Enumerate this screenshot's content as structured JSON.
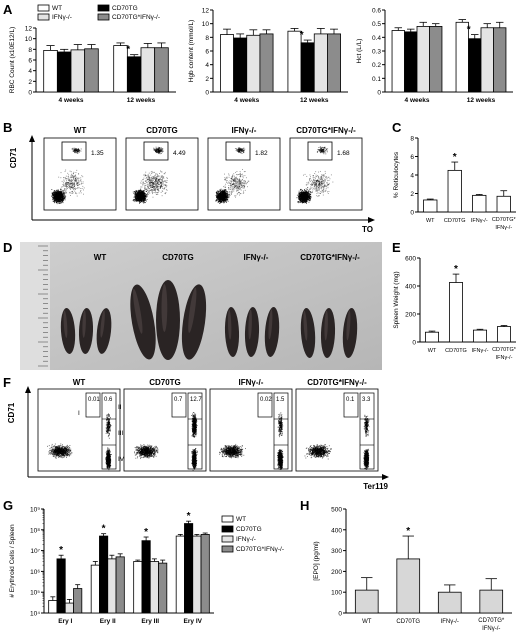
{
  "panels": {
    "A": "A",
    "B": "B",
    "C": "C",
    "D": "D",
    "E": "E",
    "F": "F",
    "G": "G",
    "H": "H"
  },
  "colors": {
    "wt": "#ffffff",
    "cd70tg": "#000000",
    "ifng": "#e4e4e4",
    "double": "#8c8c8c",
    "spleen": "#2a2424",
    "background": "#ffffff"
  },
  "groups": {
    "wt": "WT",
    "cd70tg": "CD70TG",
    "ifng": "IFNγ-/-",
    "double": "CD70TG*IFNγ-/-",
    "double_l1": "CD70TG*",
    "double_l2": "IFNγ-/-"
  },
  "star": "*",
  "chart_data": [
    {
      "id": "A1",
      "type": "bar",
      "ylabel": "RBC Count (x10E12/L)",
      "ylim": [
        0,
        12
      ],
      "yticks": [
        0,
        2,
        4,
        6,
        8,
        10,
        12
      ],
      "categories": [
        "4 weeks",
        "12 weeks"
      ],
      "legend": [
        "WT",
        "CD70TG",
        "IFNγ-/-",
        "CD70TG*IFNγ-/-"
      ],
      "series": [
        {
          "name": "WT",
          "values": [
            7.8,
            8.7
          ],
          "err": [
            0.9,
            0.5
          ]
        },
        {
          "name": "CD70TG",
          "values": [
            7.5,
            6.6
          ],
          "err": [
            0.5,
            0.4
          ]
        },
        {
          "name": "IFNγ-/-",
          "values": [
            7.9,
            8.3
          ],
          "err": [
            1.0,
            0.8
          ]
        },
        {
          "name": "CD70TG*IFNγ-/-",
          "values": [
            8.1,
            8.3
          ],
          "err": [
            0.8,
            0.9
          ]
        }
      ],
      "stars": [
        {
          "category": 1,
          "series": 1
        }
      ]
    },
    {
      "id": "A2",
      "type": "bar",
      "ylabel": "Hgb content (mmol/L)",
      "ylim": [
        0,
        12
      ],
      "yticks": [
        0,
        2,
        4,
        6,
        8,
        10,
        12
      ],
      "categories": [
        "4 weeks",
        "12 weeks"
      ],
      "series": [
        {
          "name": "WT",
          "values": [
            8.4,
            8.9
          ],
          "err": [
            0.8,
            0.4
          ]
        },
        {
          "name": "CD70TG",
          "values": [
            7.9,
            7.2
          ],
          "err": [
            0.6,
            0.4
          ]
        },
        {
          "name": "IFNγ-/-",
          "values": [
            8.3,
            8.5
          ],
          "err": [
            0.8,
            0.8
          ]
        },
        {
          "name": "CD70TG*IFNγ-/-",
          "values": [
            8.5,
            8.5
          ],
          "err": [
            0.6,
            0.7
          ]
        }
      ],
      "stars": [
        {
          "category": 1,
          "series": 1
        }
      ]
    },
    {
      "id": "A3",
      "type": "bar",
      "ylabel": "Hct (L/L)",
      "ylim": [
        0,
        0.6
      ],
      "yticks": [
        0,
        0.1,
        0.2,
        0.3,
        0.4,
        0.5,
        0.6
      ],
      "categories": [
        "4 weeks",
        "12 weeks"
      ],
      "series": [
        {
          "name": "WT",
          "values": [
            0.45,
            0.51
          ],
          "err": [
            0.02,
            0.02
          ]
        },
        {
          "name": "CD70TG",
          "values": [
            0.44,
            0.39
          ],
          "err": [
            0.02,
            0.03
          ]
        },
        {
          "name": "IFNγ-/-",
          "values": [
            0.48,
            0.47
          ],
          "err": [
            0.03,
            0.03
          ]
        },
        {
          "name": "CD70TG*IFNγ-/-",
          "values": [
            0.48,
            0.47
          ],
          "err": [
            0.02,
            0.04
          ]
        }
      ],
      "stars": [
        {
          "category": 1,
          "series": 1
        }
      ]
    },
    {
      "id": "C",
      "type": "bar",
      "ylabel": "% Reticulocytes",
      "ylim": [
        0,
        8
      ],
      "yticks": [
        0,
        2,
        4,
        6,
        8
      ],
      "categories": [
        "WT",
        "CD70TG",
        "IFNγ-/-",
        "CD70TG*IFNγ-/-"
      ],
      "values": [
        1.3,
        4.5,
        1.8,
        1.7
      ],
      "err": [
        0.1,
        0.9,
        0.1,
        0.6
      ],
      "fill": "#ffffff",
      "stars": [
        1
      ]
    },
    {
      "id": "E",
      "type": "bar",
      "ylabel": "Spleen Weight (mg)",
      "ylim": [
        0,
        600
      ],
      "yticks": [
        0,
        200,
        400,
        600
      ],
      "categories": [
        "WT",
        "CD70TG",
        "IFNγ-/-",
        "CD70TG*IFNγ-/-"
      ],
      "values": [
        70,
        425,
        85,
        110
      ],
      "err": [
        8,
        60,
        6,
        8
      ],
      "fill": "#ffffff",
      "stars": [
        1
      ]
    },
    {
      "id": "G",
      "type": "bar",
      "log": true,
      "ylabel": "# Erythroid Cells / Spleen",
      "ylim": [
        10000,
        1000000000
      ],
      "yticks": [
        10000,
        100000,
        1000000,
        10000000,
        100000000,
        1000000000
      ],
      "ytick_labels": [
        "10⁴",
        "10⁵",
        "10⁶",
        "10⁷",
        "10⁸",
        "10⁹"
      ],
      "categories": [
        "Ery I",
        "Ery II",
        "Ery III",
        "Ery IV"
      ],
      "legend": [
        "WT",
        "CD70TG",
        "IFNγ-/-",
        "CD70TG*IFNγ-/-"
      ],
      "series": [
        {
          "name": "WT",
          "values": [
            40000,
            2000000,
            3000000,
            50000000
          ],
          "err": [
            20000,
            1000000,
            500000,
            10000000
          ]
        },
        {
          "name": "CD70TG",
          "values": [
            4000000,
            50000000,
            30000000,
            200000000
          ],
          "err": [
            2000000,
            15000000,
            15000000,
            60000000
          ]
        },
        {
          "name": "IFNγ-/-",
          "values": [
            30000,
            4000000,
            3000000,
            50000000
          ],
          "err": [
            15000,
            2000000,
            1000000,
            10000000
          ]
        },
        {
          "name": "CD70TG*IFNγ-/-",
          "values": [
            150000,
            5000000,
            2500000,
            60000000
          ],
          "err": [
            80000,
            2000000,
            1000000,
            10000000
          ]
        }
      ],
      "stars": [
        {
          "category": 0,
          "series": 1
        },
        {
          "category": 1,
          "series": 1
        },
        {
          "category": 2,
          "series": 1
        },
        {
          "category": 3,
          "series": 1
        }
      ]
    },
    {
      "id": "H",
      "type": "bar",
      "ylabel": "[EPO] (pg/ml)",
      "ylim": [
        0,
        500
      ],
      "yticks": [
        0,
        100,
        200,
        300,
        400,
        500
      ],
      "categories": [
        "WT",
        "CD70TG",
        "IFNγ-/-",
        "CD70TG*IFNγ-/-"
      ],
      "values": [
        110,
        260,
        100,
        110
      ],
      "err": [
        60,
        110,
        35,
        55
      ],
      "fill": "#d7d7d7",
      "stars": [
        1
      ]
    }
  ],
  "flow_B": {
    "ylabel": "CD71",
    "xlabel": "TO",
    "plots": [
      {
        "title": "WT",
        "gate": "1.35"
      },
      {
        "title": "CD70TG",
        "gate": "4.49"
      },
      {
        "title": "IFNγ-/-",
        "gate": "1.82"
      },
      {
        "title": "CD70TG*IFNγ-/-",
        "gate": "1.68"
      }
    ]
  },
  "flow_F": {
    "ylabel": "CD71",
    "xlabel": "Ter119",
    "gate_labels": [
      "I",
      "II",
      "III",
      "IV"
    ],
    "plots": [
      {
        "title": "WT",
        "g1": "0.01",
        "g2": "0.6"
      },
      {
        "title": "CD70TG",
        "g1": "0.7",
        "g2": "12.7"
      },
      {
        "title": "IFNγ-/-",
        "g1": "0.02",
        "g2": "1.5"
      },
      {
        "title": "CD70TG*IFNγ-/-",
        "g1": "0.1",
        "g2": "3.3"
      }
    ]
  },
  "spleens_D": {
    "labels": [
      "WT",
      "CD70TG",
      "IFNγ-/-",
      "CD70TG*IFNγ-/-"
    ]
  }
}
